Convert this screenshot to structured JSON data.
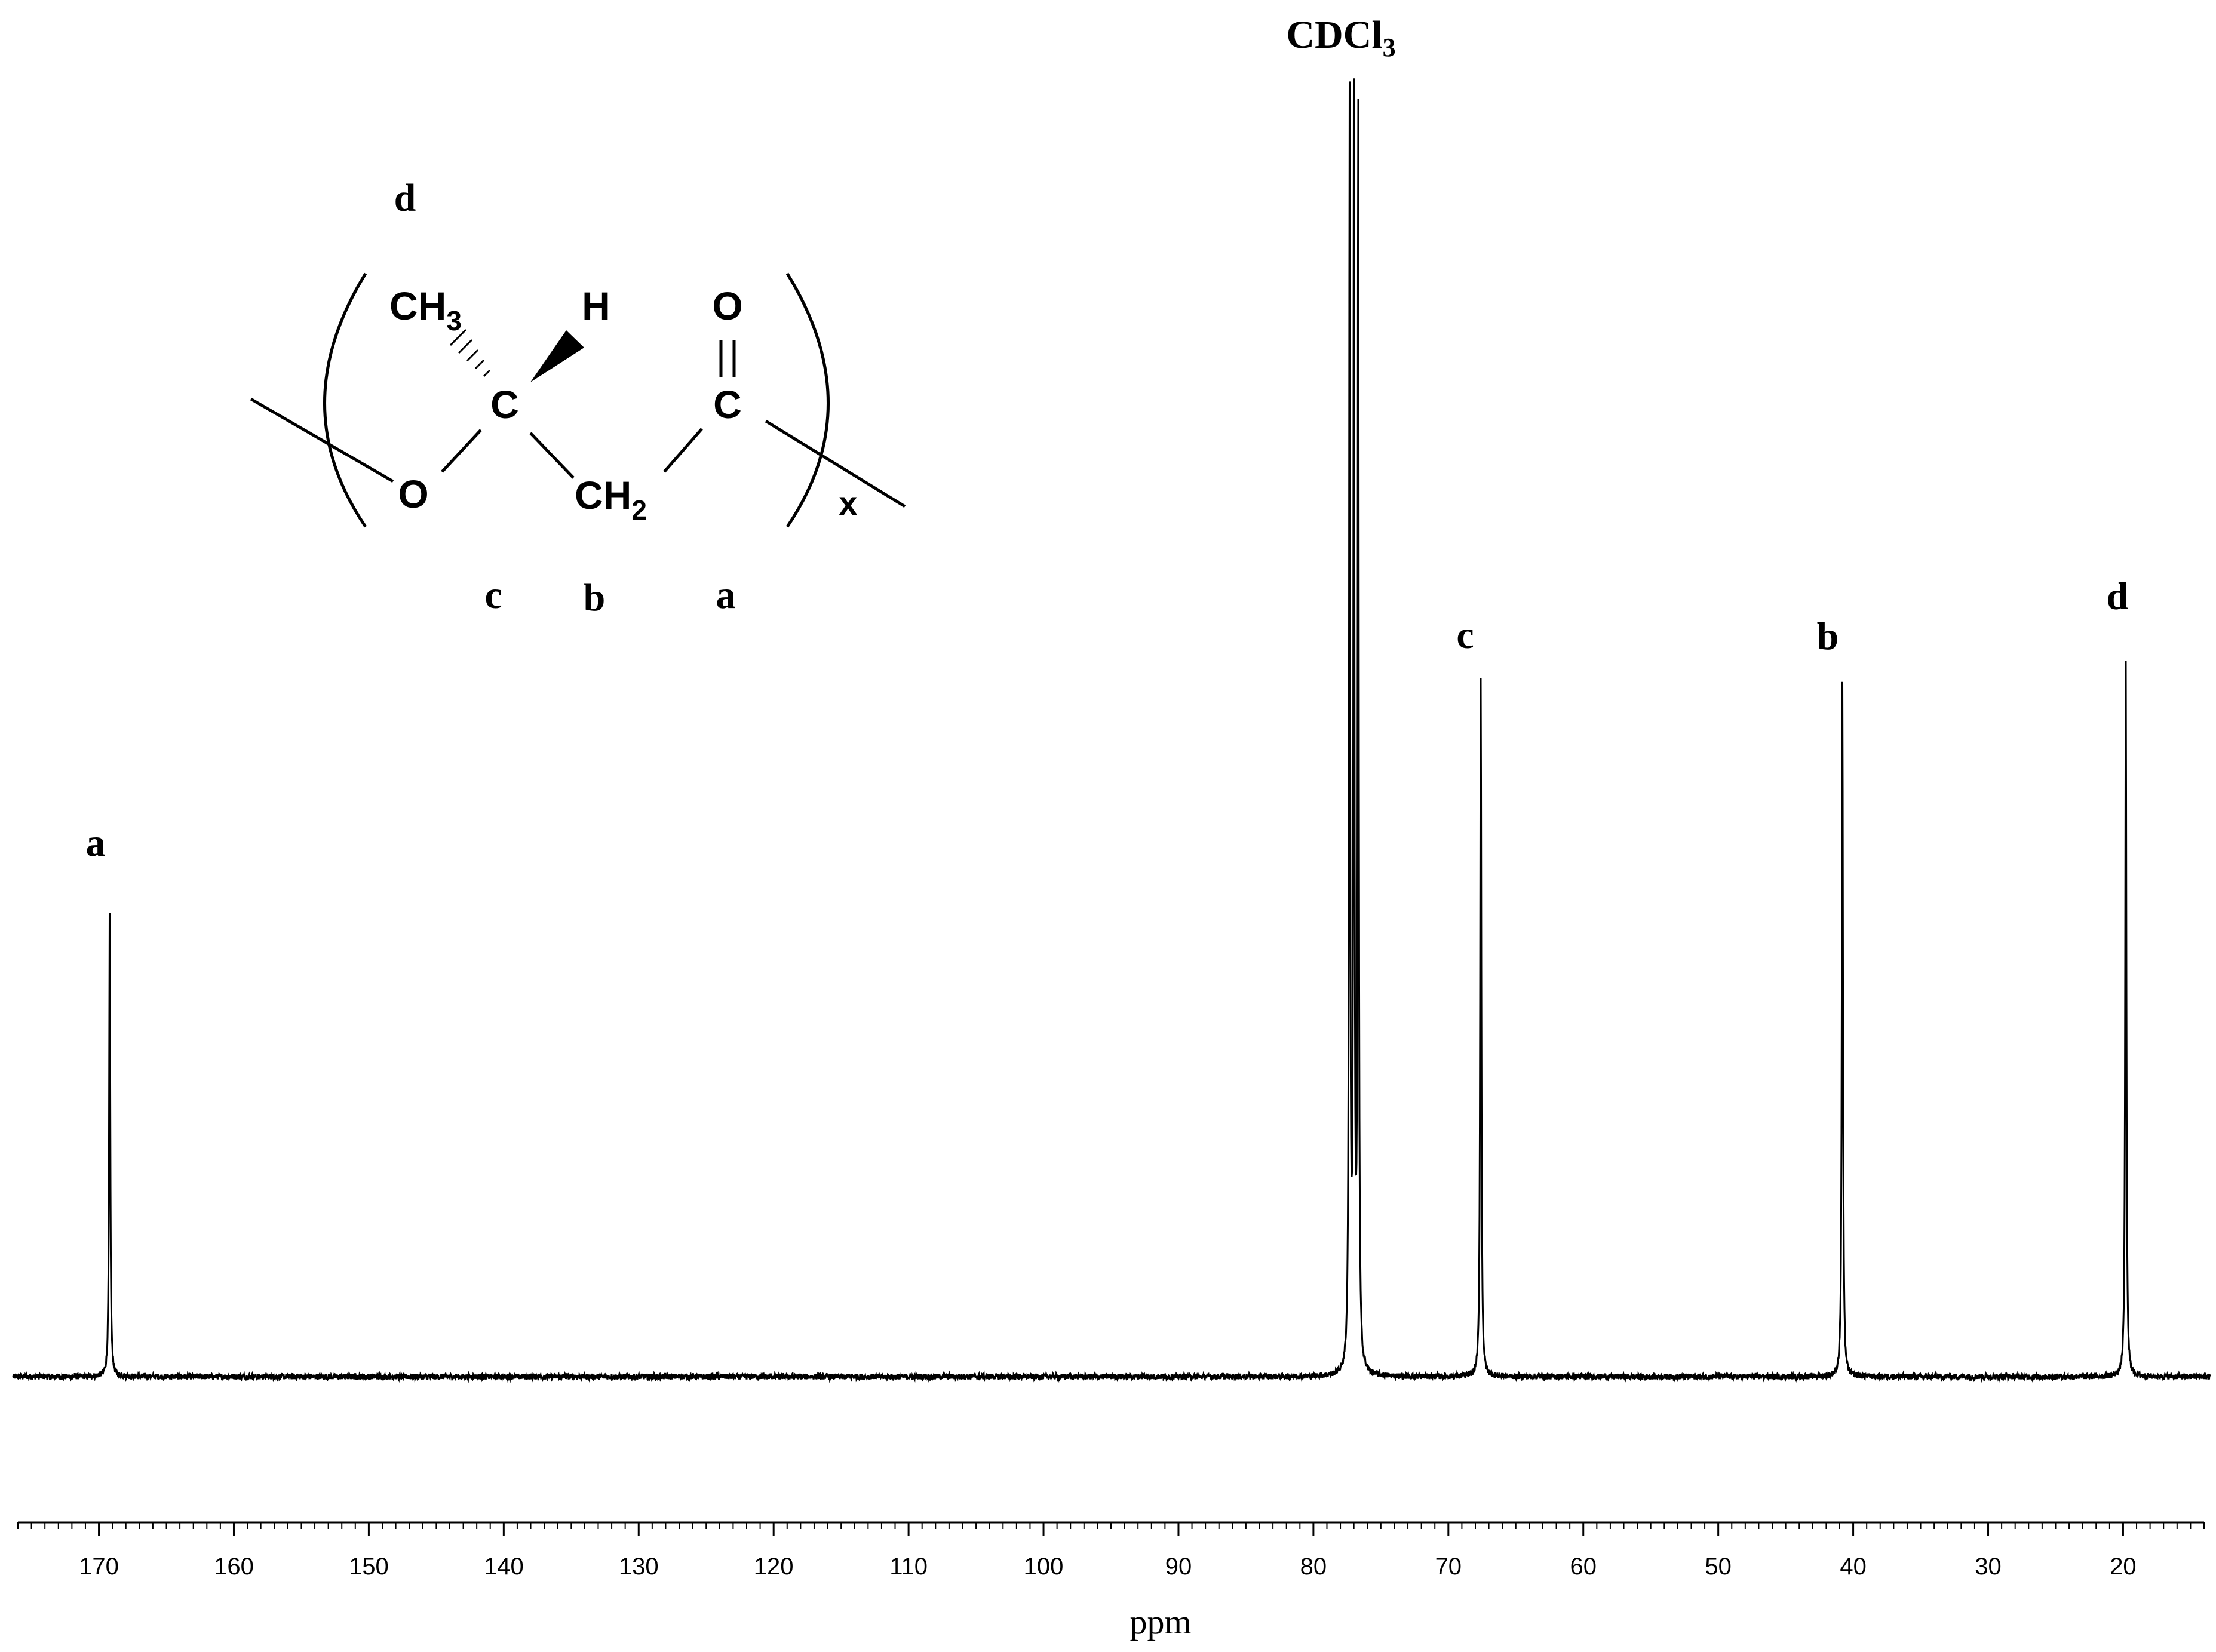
{
  "chart_data": {
    "type": "line",
    "xlabel": "ppm",
    "xlim": [
      176,
      14
    ],
    "ticks": [
      170,
      160,
      150,
      140,
      130,
      120,
      110,
      100,
      90,
      80,
      70,
      60,
      50,
      40,
      30,
      20
    ],
    "peaks": [
      {
        "label": "a",
        "ppm": 169.2,
        "intensity": 0.365
      },
      {
        "label": "CDCl3",
        "ppm": 77.0,
        "intensity": 1.0
      },
      {
        "label": "c",
        "ppm": 67.6,
        "intensity": 0.545
      },
      {
        "label": "b",
        "ppm": 40.8,
        "intensity": 0.54
      },
      {
        "label": "d",
        "ppm": 19.8,
        "intensity": 0.56
      }
    ],
    "solvent_triplet_ppm": [
      77.32,
      77.0,
      76.68
    ],
    "solvent_triplet_intensity": [
      0.99,
      1.0,
      0.985
    ],
    "series": [
      {
        "values": []
      }
    ]
  },
  "labels": {
    "solvent_main": "CDCl",
    "solvent_sub": "3",
    "a": "a",
    "b": "b",
    "c": "c",
    "d": "d"
  },
  "structure": {
    "d_label": "d",
    "ch3": "CH",
    "ch3_sub": "3",
    "h": "H",
    "o_carbonyl": "O",
    "c_chiral": "C",
    "c_carbonyl": "C",
    "o_ester": "O",
    "ch2": "CH",
    "ch2_sub": "2",
    "repeat": "x",
    "c_label": "c",
    "b_label": "b",
    "a_label": "a"
  }
}
